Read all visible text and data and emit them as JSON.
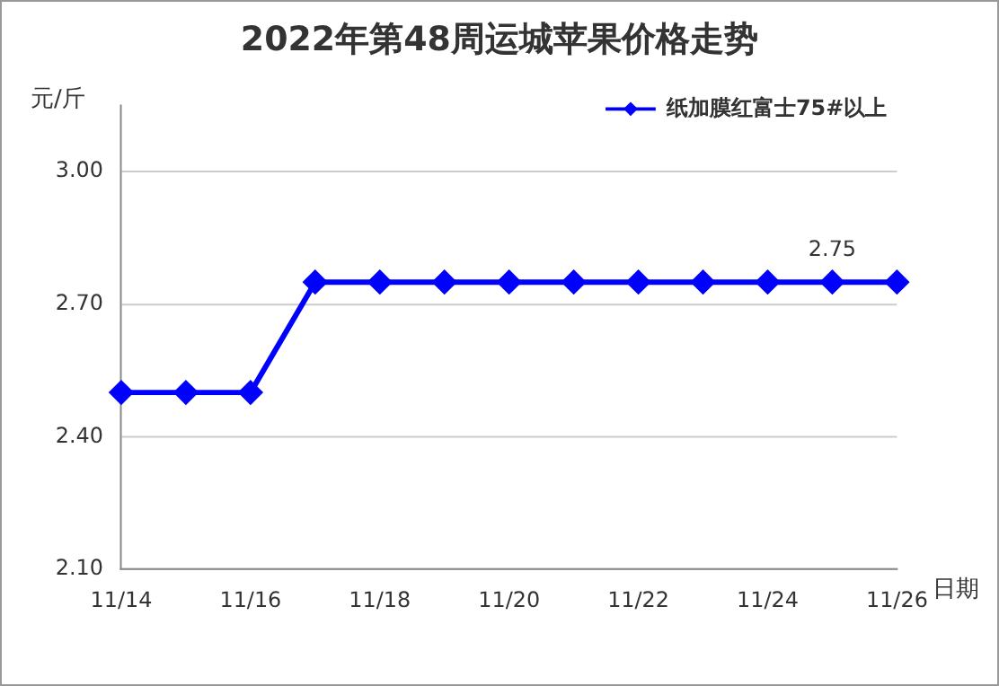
{
  "chart_data": {
    "type": "line",
    "title": "2022年第48周运城苹果价格走势",
    "ylabel": "元/斤",
    "xlabel": "日期",
    "categories": [
      "11/14",
      null,
      "11/16",
      null,
      "11/18",
      null,
      "11/20",
      null,
      "11/22",
      null,
      "11/24",
      null,
      "11/26"
    ],
    "series": [
      {
        "name": "纸加膜红富士75#以上",
        "color": "#0000ff",
        "values": [
          2.5,
          2.5,
          2.5,
          2.75,
          2.75,
          2.75,
          2.75,
          2.75,
          2.75,
          2.75,
          2.75,
          2.75,
          2.75
        ],
        "value_labels": [
          null,
          null,
          null,
          null,
          null,
          null,
          null,
          null,
          null,
          null,
          null,
          "2.75",
          null
        ]
      }
    ],
    "ylim": [
      2.1,
      3.15
    ],
    "yticks": [
      {
        "value": 2.1,
        "label": "2.10"
      },
      {
        "value": 2.4,
        "label": "2.40"
      },
      {
        "value": 2.7,
        "label": "2.70"
      },
      {
        "value": 3.0,
        "label": "3.00"
      }
    ],
    "grid": "y",
    "legend": "top right",
    "marker": "diamond",
    "line_style": "solid"
  }
}
